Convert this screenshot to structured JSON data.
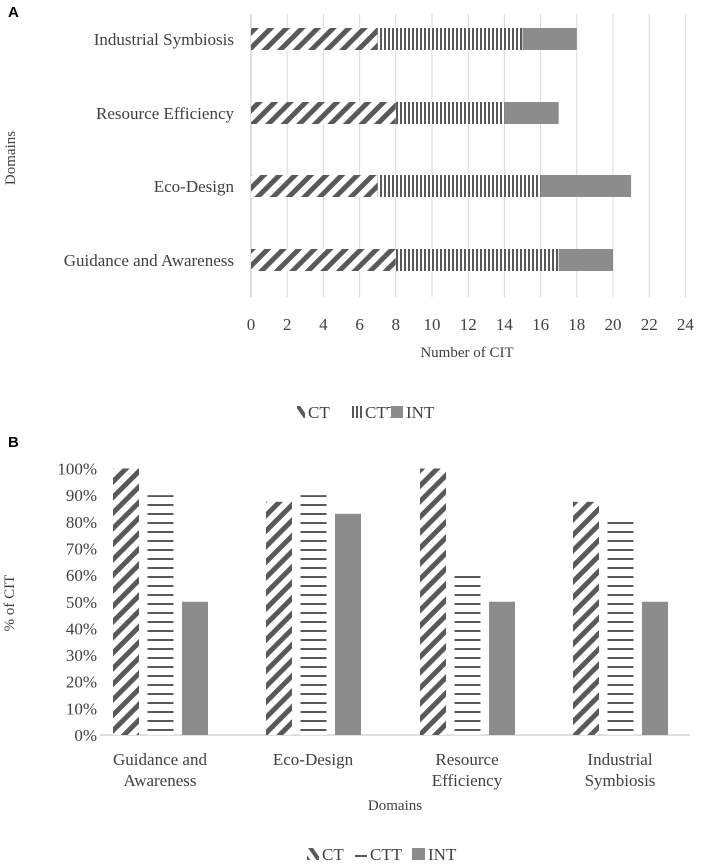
{
  "chart_data": [
    {
      "panel": "A",
      "type": "bar",
      "orientation": "horizontal",
      "stacked": true,
      "categories": [
        "Industrial Symbiosis",
        "Resource Efficiency",
        "Eco-Design",
        "Guidance and Awareness"
      ],
      "series": [
        {
          "name": "CT",
          "values": [
            7,
            8,
            7,
            8
          ],
          "pattern": "diagonal"
        },
        {
          "name": "CTT",
          "values": [
            8,
            6,
            9,
            9
          ],
          "pattern": "vertical"
        },
        {
          "name": "INT",
          "values": [
            3,
            3,
            5,
            3
          ],
          "pattern": "solid"
        }
      ],
      "xlabel": "Number of CIT",
      "ylabel": "Domains",
      "xlim": [
        0,
        24
      ],
      "xticks": [
        0,
        2,
        4,
        6,
        8,
        10,
        12,
        14,
        16,
        18,
        20,
        22,
        24
      ],
      "grid": "vertical",
      "legend": "bottom"
    },
    {
      "panel": "B",
      "type": "bar",
      "orientation": "vertical",
      "stacked": false,
      "categories": [
        [
          "Guidance and",
          "Awareness"
        ],
        [
          "Eco-Design"
        ],
        [
          "Resource",
          "Efficiency"
        ],
        [
          "Industrial",
          "Symbiosis"
        ]
      ],
      "series": [
        {
          "name": "CT",
          "values": [
            100,
            87.5,
            100,
            87.5
          ],
          "pattern": "diagonal"
        },
        {
          "name": "CTT",
          "values": [
            90,
            90,
            60,
            80
          ],
          "pattern": "horizontal"
        },
        {
          "name": "INT",
          "values": [
            50,
            83,
            50,
            50
          ],
          "pattern": "solid"
        }
      ],
      "xlabel": "Domains",
      "ylabel": "% of CIT",
      "ylim": [
        0,
        100
      ],
      "yticks": [
        "0%",
        "10%",
        "20%",
        "30%",
        "40%",
        "50%",
        "60%",
        "70%",
        "80%",
        "90%",
        "100%"
      ],
      "grid": "none",
      "legend": "bottom"
    }
  ],
  "colors": {
    "text": "#404040",
    "bar": "#595959",
    "solid": "#8c8c8c",
    "grid": "#d9d9d9",
    "axis": "#bfbfbf"
  }
}
